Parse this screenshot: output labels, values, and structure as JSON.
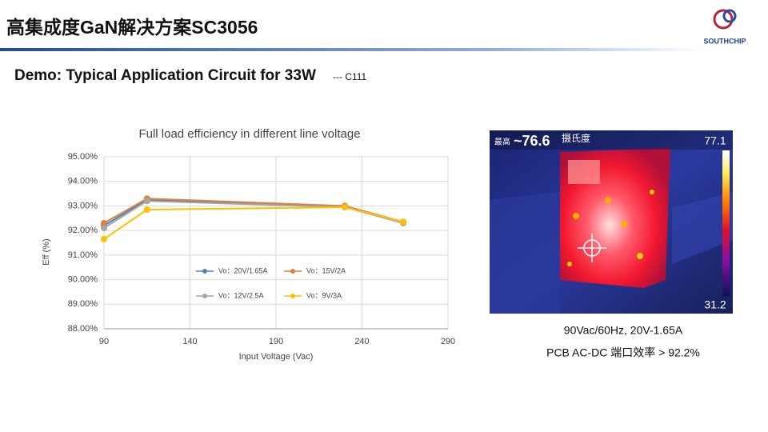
{
  "header": {
    "title": "高集成度GaN解决方案SC3056",
    "logo": "SOUTHCHIP"
  },
  "subtitle": {
    "main": "Demo: Typical Application Circuit for 33W",
    "note": "--- C111"
  },
  "chart_data": {
    "type": "line",
    "title": "Full load efficiency in different line voltage",
    "x_label": "Input Voltage (Vac)",
    "y_label": "Eff (%)",
    "x": [
      90,
      115,
      230,
      264
    ],
    "series": [
      {
        "name": "Vo：20V/1.65A",
        "color": "#4f81bd",
        "values": [
          92.2,
          93.25,
          92.95,
          92.35
        ]
      },
      {
        "name": "Vo：15V/2A",
        "color": "#e0803a",
        "values": [
          92.3,
          93.3,
          93.0,
          92.35
        ]
      },
      {
        "name": "Vo：12V/2.5A",
        "color": "#a5a5a5",
        "values": [
          92.1,
          93.2,
          92.95,
          92.3
        ]
      },
      {
        "name": "Vo：9V/3A",
        "color": "#ffc000",
        "values": [
          91.65,
          92.85,
          92.95,
          92.35
        ]
      }
    ],
    "xlim": [
      90,
      290
    ],
    "xticks": [
      90,
      140,
      190,
      240,
      290
    ],
    "ylim": [
      88,
      95
    ],
    "yticks": [
      {
        "value": 88,
        "label": "88.00%"
      },
      {
        "value": 89,
        "label": "89.00%"
      },
      {
        "value": 90,
        "label": "90.00%"
      },
      {
        "value": 91,
        "label": "91.00%"
      },
      {
        "value": 92,
        "label": "92.00%"
      },
      {
        "value": 93,
        "label": "93.00%"
      },
      {
        "value": 94,
        "label": "94.00%"
      },
      {
        "value": 95,
        "label": "95.00%"
      }
    ],
    "grid": true
  },
  "thermal": {
    "max_label": "最高",
    "max_value": "~76.6",
    "unit": "摄氏度",
    "scale_max": "77.1",
    "scale_min": "31.2"
  },
  "captions": [
    "90Vac/60Hz, 20V-1.65A",
    "PCB AC-DC 端口效率 > 92.2%"
  ]
}
